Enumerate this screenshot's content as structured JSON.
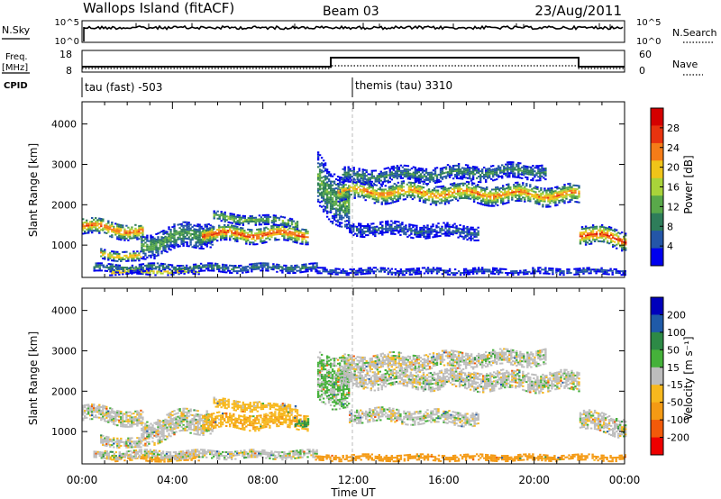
{
  "header": {
    "station": "Wallops Island (fitACF)",
    "beam": "Beam 03",
    "date": "23/Aug/2011"
  },
  "top_panels": {
    "nsky_label": "N.Sky",
    "nsky_ticks": [
      "10^5",
      "10^0"
    ],
    "nsearch_label": "N.Search",
    "nsearch_ticks": [
      "10^5",
      "10^0"
    ],
    "freq_label_1": "Freq.",
    "freq_label_2": "[MHz]",
    "freq_ticks": [
      "18",
      "8"
    ],
    "nave_label": "Nave",
    "nave_ticks": [
      "60",
      "0"
    ],
    "cpid_label": "CPID",
    "cpid_segments": [
      {
        "text": "tau (fast) -503",
        "start_hour": 0
      },
      {
        "text": "themis (tau) 3310",
        "start_hour": 12
      }
    ]
  },
  "colors": {
    "power_scale": [
      "#0000ee",
      "#2456a8",
      "#2e7d5a",
      "#59a94a",
      "#a9d33a",
      "#f0c419",
      "#f57c18",
      "#e8330f",
      "#d40000"
    ],
    "velocity_scale": [
      "#ee0000",
      "#f25a0a",
      "#f49a14",
      "#f7b81e",
      "#bdbdbd",
      "#45b13a",
      "#2d8a46",
      "#1f5aa8",
      "#0000bb"
    ],
    "ground_scatter": "#bdbdbd"
  },
  "chart_data": [
    {
      "type": "heatmap",
      "name": "power",
      "ylabel": "Slant Range [km]",
      "yticks": [
        "1000",
        "2000",
        "3000",
        "4000"
      ],
      "ylim": [
        200,
        4550
      ],
      "xlim_hours": [
        0,
        24
      ],
      "colorbar_label": "Power [dB]",
      "colorbar_ticks": [
        "4",
        "8",
        "12",
        "16",
        "20",
        "24",
        "28"
      ],
      "clim": [
        0,
        30
      ],
      "regions": [
        {
          "t0": 0.0,
          "t1": 2.7,
          "r_center": 1380,
          "r_half": 170,
          "drift": -150,
          "peak": 24
        },
        {
          "t0": 0.8,
          "t1": 2.6,
          "r_center": 720,
          "r_half": 100,
          "drift": -100,
          "peak": 22
        },
        {
          "t0": 1.2,
          "t1": 5.2,
          "r_center": 320,
          "r_half": 60,
          "drift": 0,
          "peak": 24
        },
        {
          "t0": 2.6,
          "t1": 5.8,
          "r_center": 1150,
          "r_half": 260,
          "drift": 350,
          "peak": 12
        },
        {
          "t0": 5.3,
          "t1": 10.0,
          "r_center": 1250,
          "r_half": 170,
          "drift": 0,
          "peak": 26
        },
        {
          "t0": 5.8,
          "t1": 9.5,
          "r_center": 1600,
          "r_half": 100,
          "drift": -150,
          "peak": 14
        },
        {
          "t0": 0.5,
          "t1": 10.4,
          "r_center": 420,
          "r_half": 90,
          "drift": 0,
          "peak": 9
        },
        {
          "t0": 10.4,
          "t1": 11.8,
          "r_center": 2300,
          "r_half": 550,
          "drift": -500,
          "peak": 12
        },
        {
          "t0": 11.3,
          "t1": 22.0,
          "r_center": 2260,
          "r_half": 200,
          "drift": -100,
          "peak": 22
        },
        {
          "t0": 11.5,
          "t1": 20.5,
          "r_center": 2750,
          "r_half": 160,
          "drift": 150,
          "peak": 9
        },
        {
          "t0": 11.8,
          "t1": 17.5,
          "r_center": 1350,
          "r_half": 140,
          "drift": -100,
          "peak": 6
        },
        {
          "t0": 22.0,
          "t1": 24.0,
          "r_center": 1180,
          "r_half": 200,
          "drift": -150,
          "peak": 26
        },
        {
          "t0": 10.3,
          "t1": 24.0,
          "r_center": 330,
          "r_half": 60,
          "drift": 0,
          "peak": 6
        }
      ]
    },
    {
      "type": "heatmap",
      "name": "velocity",
      "ylabel": "Slant Range [km]",
      "yticks": [
        "1000",
        "2000",
        "3000",
        "4000"
      ],
      "ylim": [
        200,
        4550
      ],
      "xlim_hours": [
        0,
        24
      ],
      "xlabel": "Time UT",
      "xticks": [
        "00:00",
        "04:00",
        "08:00",
        "12:00",
        "16:00",
        "20:00",
        "00:00"
      ],
      "colorbar_label": "Velocity [m s⁻¹]",
      "colorbar_ticks": [
        "-200",
        "-100",
        "-50",
        "-15",
        "15",
        "50",
        "100",
        "200"
      ],
      "clim": [
        -250,
        250
      ],
      "regions": [
        {
          "t0": 0.0,
          "t1": 2.7,
          "r_center": 1380,
          "r_half": 170,
          "drift": -150,
          "vel": 0
        },
        {
          "t0": 0.8,
          "t1": 2.6,
          "r_center": 720,
          "r_half": 100,
          "drift": -100,
          "vel": 0
        },
        {
          "t0": 1.2,
          "t1": 5.2,
          "r_center": 320,
          "r_half": 60,
          "drift": 0,
          "vel": -60
        },
        {
          "t0": 2.6,
          "t1": 5.8,
          "r_center": 1150,
          "r_half": 260,
          "drift": 350,
          "vel": 0
        },
        {
          "t0": 5.3,
          "t1": 10.0,
          "r_center": 1250,
          "r_half": 170,
          "drift": 0,
          "vel": -40
        },
        {
          "t0": 5.8,
          "t1": 9.5,
          "r_center": 1600,
          "r_half": 100,
          "drift": -150,
          "vel": -30
        },
        {
          "t0": 9.4,
          "t1": 10.0,
          "r_center": 1200,
          "r_half": 90,
          "drift": 0,
          "vel": 50
        },
        {
          "t0": 0.5,
          "t1": 10.4,
          "r_center": 420,
          "r_half": 90,
          "drift": 0,
          "vel": 0
        },
        {
          "t0": 10.4,
          "t1": 11.8,
          "r_center": 2300,
          "r_half": 550,
          "drift": -500,
          "vel": 20
        },
        {
          "t0": 11.3,
          "t1": 22.0,
          "r_center": 2260,
          "r_half": 200,
          "drift": -100,
          "vel": 0
        },
        {
          "t0": 11.5,
          "t1": 20.5,
          "r_center": 2750,
          "r_half": 160,
          "drift": 150,
          "vel": 0
        },
        {
          "t0": 11.8,
          "t1": 17.5,
          "r_center": 1350,
          "r_half": 140,
          "drift": -100,
          "vel": 0
        },
        {
          "t0": 22.0,
          "t1": 24.0,
          "r_center": 1180,
          "r_half": 200,
          "drift": -150,
          "vel": 0
        },
        {
          "t0": 10.3,
          "t1": 24.0,
          "r_center": 330,
          "r_half": 60,
          "drift": 0,
          "vel": -70
        }
      ]
    }
  ]
}
